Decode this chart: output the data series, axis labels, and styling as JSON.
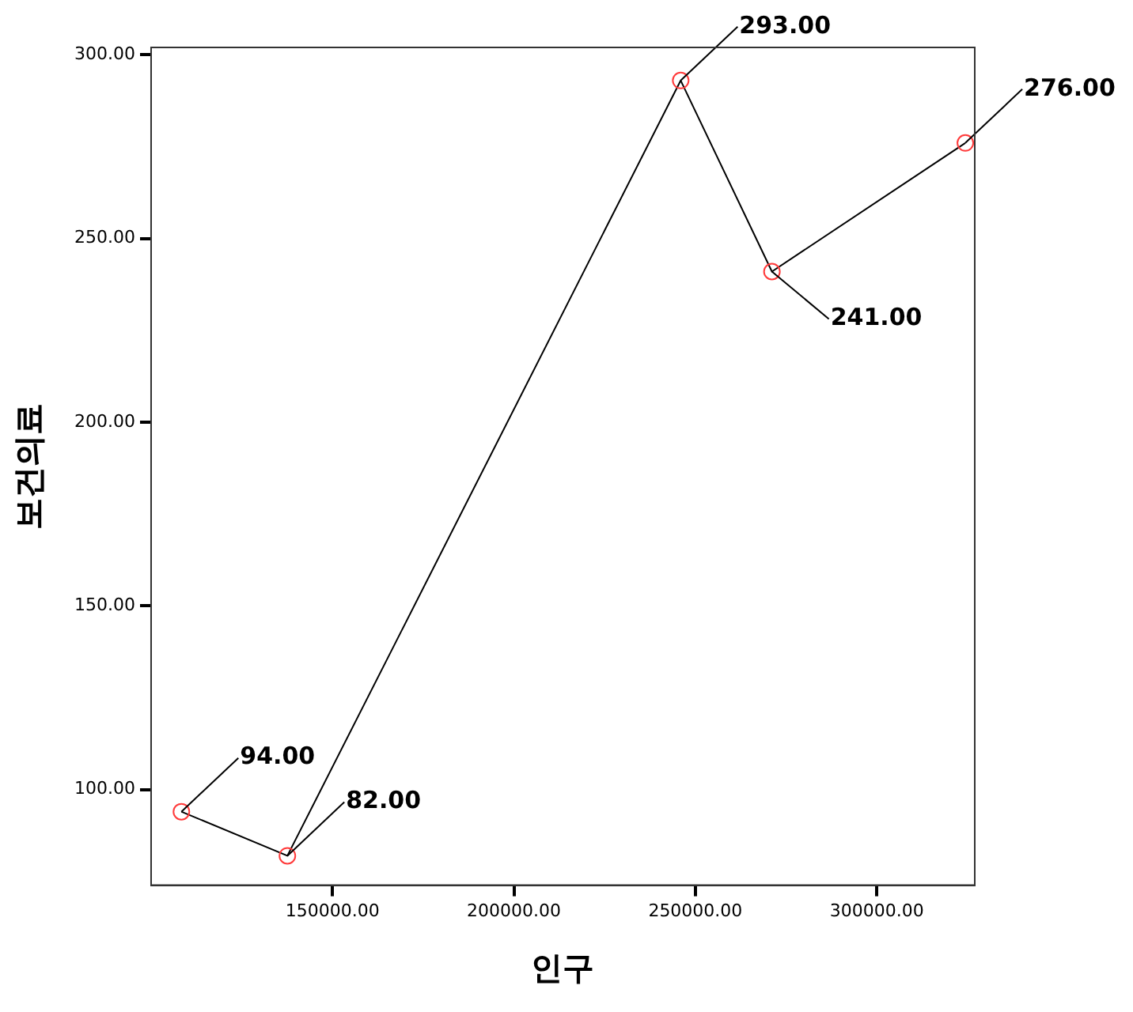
{
  "chart_data": {
    "type": "line",
    "xlabel": "인구",
    "ylabel": "보건의료",
    "x": [
      108350,
      137560,
      245960,
      271100,
      324400
    ],
    "series": [
      {
        "color": "#000000",
        "colors": [
          "#ff3b3b",
          "#ff3b3b",
          "#ff3b3b",
          "#ff3b3b",
          "#ff3b3b"
        ],
        "values": [
          94,
          82,
          293,
          241,
          276
        ],
        "value_labels": [
          "94.00",
          "82.00",
          "293.00",
          "241.00",
          "276.00"
        ]
      }
    ],
    "xlim": [
      100000,
      327000
    ],
    "xticks": [
      {
        "value": 150000,
        "label": "150000.00"
      },
      {
        "value": 200000,
        "label": "200000.00"
      },
      {
        "value": 250000,
        "label": "250000.00"
      },
      {
        "value": 300000,
        "label": "300000.00"
      }
    ],
    "ylim": [
      74,
      302
    ],
    "yticks": [
      {
        "value": 100,
        "label": "100.00"
      },
      {
        "value": 150,
        "label": "150.00"
      },
      {
        "value": 200,
        "label": "200.00"
      },
      {
        "value": 250,
        "label": "250.00"
      },
      {
        "value": 300,
        "label": "300.00"
      }
    ],
    "grid": false,
    "legend": false,
    "marker": "circle",
    "line_style": "solid"
  }
}
